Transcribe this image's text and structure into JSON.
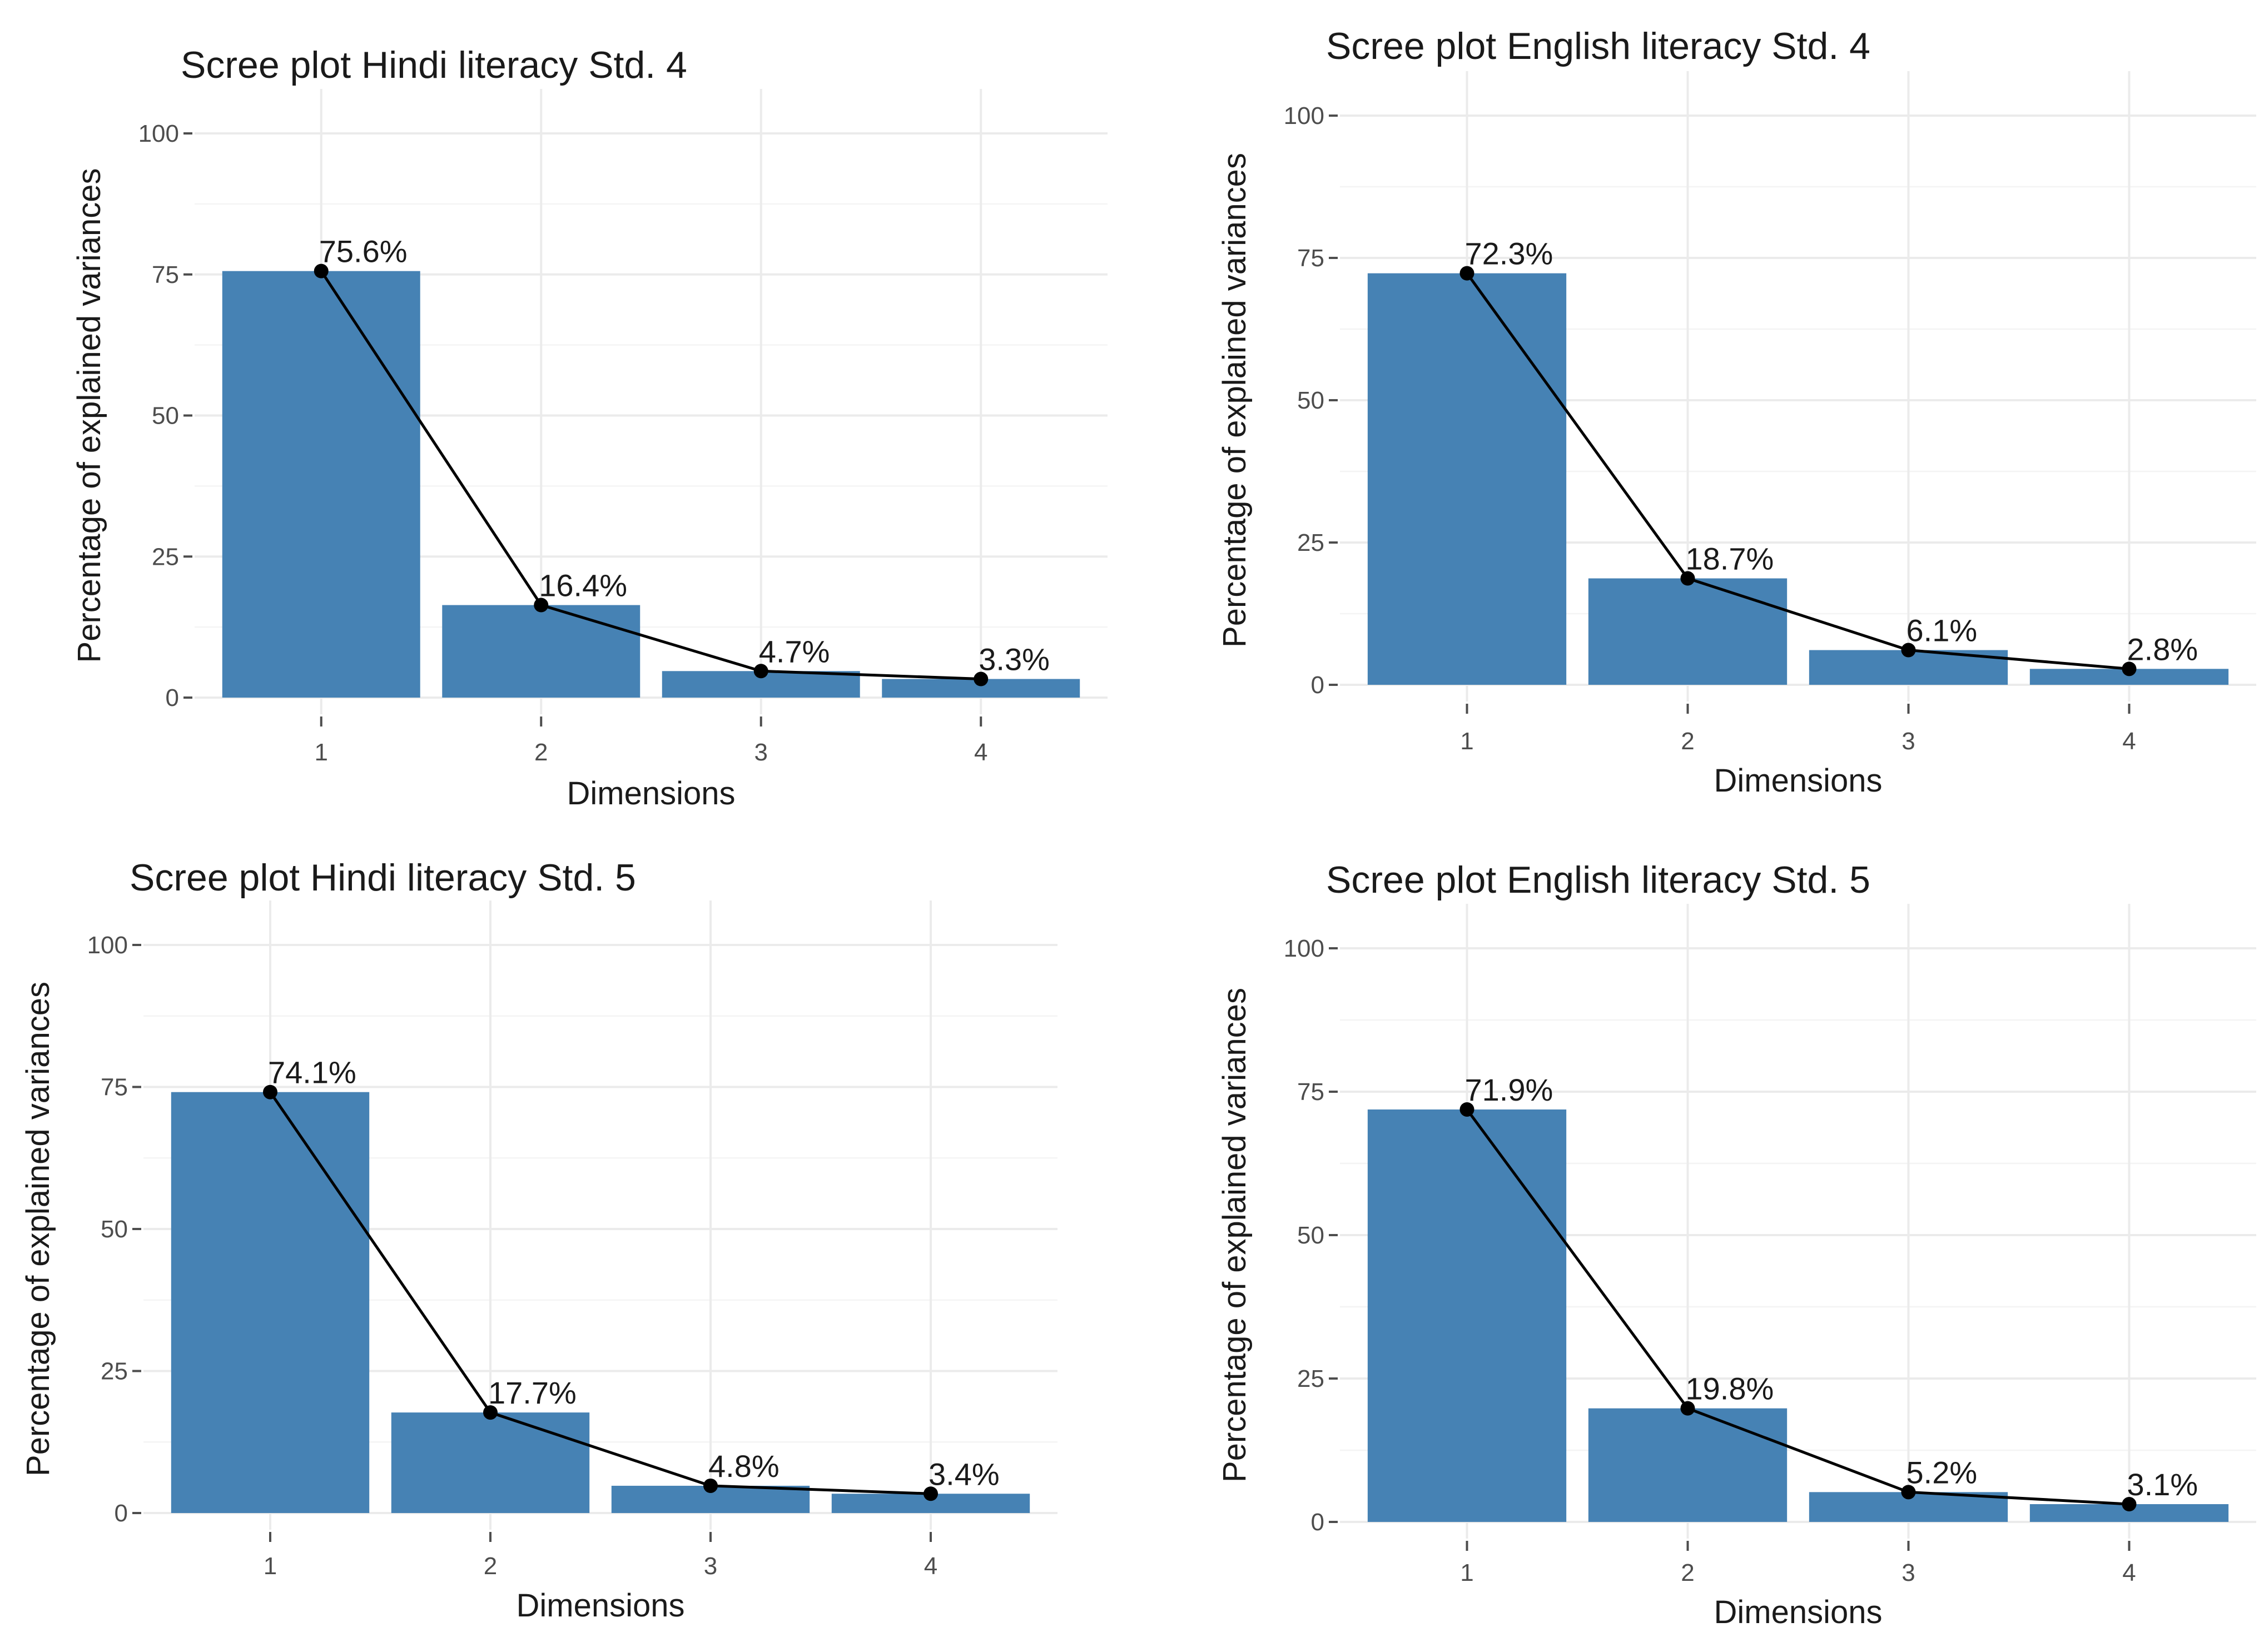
{
  "chart_data": [
    {
      "type": "bar",
      "title": "Scree plot Hindi literacy Std. 4",
      "xlabel": "Dimensions",
      "ylabel": "Percentage of explained variances",
      "categories": [
        "1",
        "2",
        "3",
        "4"
      ],
      "values": [
        75.6,
        16.4,
        4.7,
        3.3
      ],
      "labels": [
        "75.6%",
        "16.4%",
        "4.7%",
        "3.3%"
      ],
      "ylim": [
        0,
        100
      ],
      "yticks": [
        0,
        25,
        50,
        75,
        100
      ],
      "ytick_labels": [
        "0",
        "25",
        "50",
        "75",
        "100"
      ],
      "grid": true,
      "overlay": "line with points",
      "bar_color": "#4682b4",
      "line_color": "#000000"
    },
    {
      "type": "bar",
      "title": "Scree plot English literacy Std. 4",
      "xlabel": "Dimensions",
      "ylabel": "Percentage of explained variances",
      "categories": [
        "1",
        "2",
        "3",
        "4"
      ],
      "values": [
        72.3,
        18.7,
        6.1,
        2.8
      ],
      "labels": [
        "72.3%",
        "18.7%",
        "6.1%",
        "2.8%"
      ],
      "ylim": [
        0,
        100
      ],
      "yticks": [
        0,
        25,
        50,
        75,
        100
      ],
      "ytick_labels": [
        "0",
        "25",
        "50",
        "75",
        "100"
      ],
      "grid": true,
      "overlay": "line with points",
      "bar_color": "#4682b4",
      "line_color": "#000000"
    },
    {
      "type": "bar",
      "title": "Scree plot Hindi literacy Std. 5",
      "xlabel": "Dimensions",
      "ylabel": "Percentage of explained variances",
      "categories": [
        "1",
        "2",
        "3",
        "4"
      ],
      "values": [
        74.1,
        17.7,
        4.8,
        3.4
      ],
      "labels": [
        "74.1%",
        "17.7%",
        "4.8%",
        "3.4%"
      ],
      "ylim": [
        0,
        100
      ],
      "yticks": [
        0,
        25,
        50,
        75,
        100
      ],
      "ytick_labels": [
        "0",
        "25",
        "50",
        "75",
        "100"
      ],
      "grid": true,
      "overlay": "line with points",
      "bar_color": "#4682b4",
      "line_color": "#000000"
    },
    {
      "type": "bar",
      "title": "Scree plot English literacy Std. 5",
      "xlabel": "Dimensions",
      "ylabel": "Percentage of explained variances",
      "categories": [
        "1",
        "2",
        "3",
        "4"
      ],
      "values": [
        71.9,
        19.8,
        5.2,
        3.1
      ],
      "labels": [
        "71.9%",
        "19.8%",
        "5.2%",
        "3.1%"
      ],
      "ylim": [
        0,
        100
      ],
      "yticks": [
        0,
        25,
        50,
        75,
        100
      ],
      "ytick_labels": [
        "0",
        "25",
        "50",
        "75",
        "100"
      ],
      "grid": true,
      "overlay": "line with points",
      "bar_color": "#4682b4",
      "line_color": "#000000"
    }
  ]
}
